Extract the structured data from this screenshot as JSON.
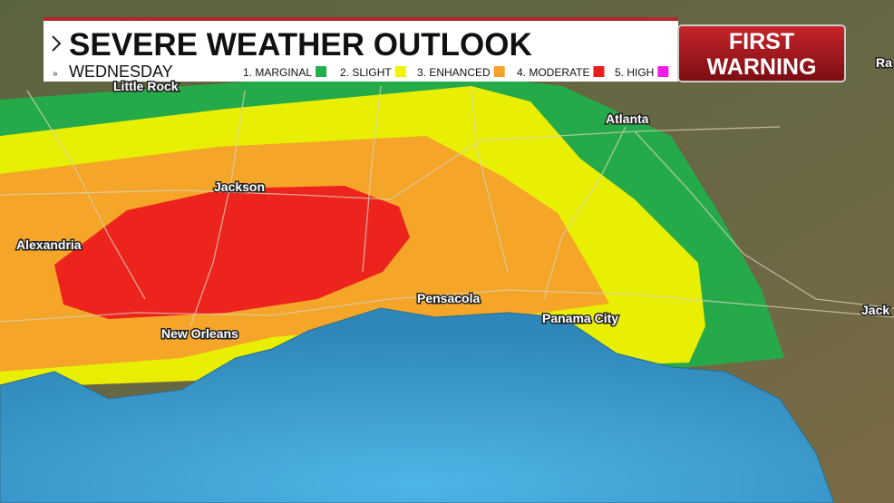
{
  "header": {
    "title": "SEVERE WEATHER OUTLOOK",
    "day": "WEDNESDAY"
  },
  "legend": [
    {
      "label": "1. MARGINAL",
      "color": "#1fb04a"
    },
    {
      "label": "2. SLIGHT",
      "color": "#f2f200"
    },
    {
      "label": "3. ENHANCED",
      "color": "#f6a02a"
    },
    {
      "label": "4. MODERATE",
      "color": "#ec1c1c"
    },
    {
      "label": "5. HIGH",
      "color": "#f21ee6"
    }
  ],
  "logo": {
    "line1": "FIRST",
    "line2": "WARNING"
  },
  "cities": [
    {
      "name": "Little Rock"
    },
    {
      "name": "Atlanta"
    },
    {
      "name": "Jackson"
    },
    {
      "name": "Alexandria"
    },
    {
      "name": "New Orleans"
    },
    {
      "name": "Pensacola"
    },
    {
      "name": "Panama City"
    },
    {
      "name": "Ra"
    },
    {
      "name": "Jack"
    }
  ]
}
